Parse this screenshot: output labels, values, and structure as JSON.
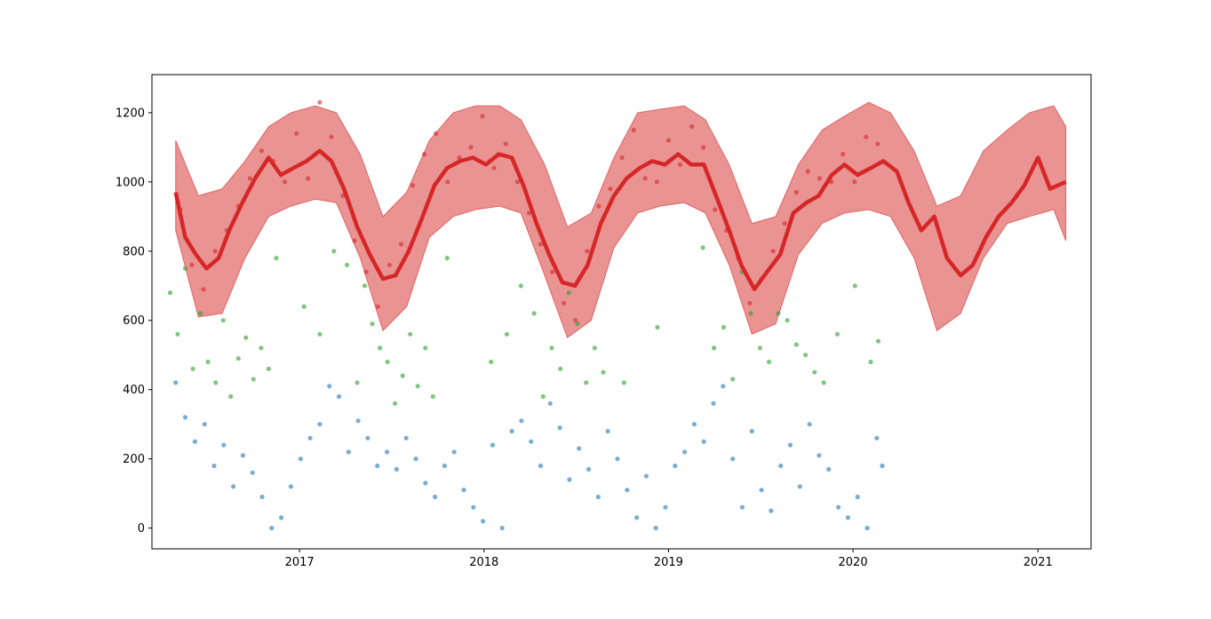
{
  "chart_data": {
    "type": "scatter",
    "x_axis": {
      "kind": "date",
      "range": [
        "2016-03-15",
        "2021-04-16"
      ],
      "ticks": [
        {
          "date": "2017-01-01",
          "label": "2017"
        },
        {
          "date": "2018-01-01",
          "label": "2018"
        },
        {
          "date": "2019-01-01",
          "label": "2019"
        },
        {
          "date": "2020-01-01",
          "label": "2020"
        },
        {
          "date": "2021-01-01",
          "label": "2021"
        }
      ]
    },
    "y_axis": {
      "range": [
        -60,
        1310
      ],
      "ticks": [
        {
          "value": 0,
          "label": "0"
        },
        {
          "value": 200,
          "label": "200"
        },
        {
          "value": 400,
          "label": "400"
        },
        {
          "value": 600,
          "label": "600"
        },
        {
          "value": 800,
          "label": "800"
        },
        {
          "value": 1000,
          "label": "1000"
        },
        {
          "value": 1200,
          "label": "1200"
        }
      ]
    },
    "grid": false,
    "legend": "none",
    "colors": {
      "series_blue": "#1f77b4",
      "series_green": "#2ca02c",
      "series_red": "#d62728",
      "band": "#d62728"
    },
    "band": {
      "x": [
        "2016-05-01",
        "2016-06-15",
        "2016-08-01",
        "2016-09-15",
        "2016-11-01",
        "2016-12-15",
        "2017-02-01",
        "2017-03-15",
        "2017-05-01",
        "2017-06-15",
        "2017-08-01",
        "2017-09-15",
        "2017-11-01",
        "2017-12-15",
        "2018-02-01",
        "2018-03-15",
        "2018-05-01",
        "2018-06-15",
        "2018-08-01",
        "2018-09-15",
        "2018-11-01",
        "2018-12-15",
        "2019-02-01",
        "2019-03-15",
        "2019-05-01",
        "2019-06-15",
        "2019-08-01",
        "2019-09-15",
        "2019-11-01",
        "2019-12-15",
        "2020-02-01",
        "2020-03-15",
        "2020-05-01",
        "2020-06-15",
        "2020-08-01",
        "2020-09-15",
        "2020-11-01",
        "2020-12-15",
        "2021-02-01",
        "2021-02-25"
      ],
      "upper": [
        1120,
        960,
        980,
        1060,
        1160,
        1200,
        1220,
        1200,
        1080,
        900,
        970,
        1120,
        1200,
        1220,
        1220,
        1180,
        1050,
        870,
        910,
        1070,
        1200,
        1210,
        1220,
        1180,
        1050,
        880,
        900,
        1050,
        1150,
        1190,
        1230,
        1200,
        1090,
        930,
        960,
        1090,
        1150,
        1200,
        1220,
        1160
      ],
      "lower": [
        860,
        610,
        620,
        780,
        900,
        930,
        950,
        940,
        780,
        570,
        640,
        840,
        900,
        920,
        930,
        910,
        730,
        550,
        600,
        810,
        910,
        930,
        940,
        910,
        760,
        560,
        590,
        790,
        880,
        910,
        920,
        900,
        780,
        570,
        620,
        780,
        880,
        900,
        920,
        830
      ]
    },
    "trend": {
      "x": [
        "2016-05-01",
        "2016-05-20",
        "2016-06-10",
        "2016-07-01",
        "2016-07-25",
        "2016-08-15",
        "2016-09-10",
        "2016-10-05",
        "2016-11-01",
        "2016-11-25",
        "2016-12-20",
        "2017-01-15",
        "2017-02-10",
        "2017-03-05",
        "2017-03-30",
        "2017-04-25",
        "2017-05-20",
        "2017-06-15",
        "2017-07-10",
        "2017-08-05",
        "2017-08-30",
        "2017-09-25",
        "2017-10-20",
        "2017-11-15",
        "2017-12-10",
        "2018-01-05",
        "2018-01-30",
        "2018-02-25",
        "2018-03-20",
        "2018-04-15",
        "2018-05-10",
        "2018-06-05",
        "2018-06-30",
        "2018-07-25",
        "2018-08-20",
        "2018-09-15",
        "2018-10-10",
        "2018-11-05",
        "2018-11-30",
        "2018-12-25",
        "2019-01-20",
        "2019-02-15",
        "2019-03-12",
        "2019-04-05",
        "2019-05-01",
        "2019-05-25",
        "2019-06-20",
        "2019-07-15",
        "2019-08-10",
        "2019-09-05",
        "2019-10-01",
        "2019-10-25",
        "2019-11-20",
        "2019-12-15",
        "2020-01-10",
        "2020-02-05",
        "2020-03-01",
        "2020-03-28",
        "2020-04-20",
        "2020-05-15",
        "2020-06-10",
        "2020-07-05",
        "2020-08-01",
        "2020-08-25",
        "2020-09-20",
        "2020-10-15",
        "2020-11-10",
        "2020-12-05",
        "2021-01-01",
        "2021-01-25",
        "2021-02-25"
      ],
      "y": [
        970,
        840,
        790,
        750,
        780,
        860,
        940,
        1010,
        1070,
        1020,
        1040,
        1060,
        1090,
        1060,
        980,
        870,
        790,
        720,
        730,
        800,
        890,
        990,
        1040,
        1060,
        1070,
        1050,
        1080,
        1070,
        990,
        880,
        790,
        710,
        700,
        760,
        880,
        960,
        1010,
        1040,
        1060,
        1050,
        1080,
        1050,
        1050,
        960,
        860,
        760,
        690,
        740,
        790,
        910,
        940,
        960,
        1020,
        1050,
        1020,
        1040,
        1060,
        1030,
        940,
        860,
        900,
        780,
        730,
        760,
        840,
        900,
        940,
        990,
        1070,
        980,
        1000
      ]
    },
    "series": [
      {
        "color": "#d62728",
        "x": [
          "2016-05-10",
          "2016-06-02",
          "2016-06-25",
          "2016-07-18",
          "2016-08-10",
          "2016-09-02",
          "2016-09-25",
          "2016-10-18",
          "2016-11-10",
          "2016-12-03",
          "2016-12-26",
          "2017-01-18",
          "2017-02-10",
          "2017-03-05",
          "2017-03-28",
          "2017-04-20",
          "2017-05-13",
          "2017-06-05",
          "2017-06-28",
          "2017-07-21",
          "2017-08-13",
          "2017-09-05",
          "2017-09-28",
          "2017-10-21",
          "2017-11-13",
          "2017-12-06",
          "2017-12-29",
          "2018-01-21",
          "2018-02-13",
          "2018-03-08",
          "2018-03-31",
          "2018-04-23",
          "2018-05-16",
          "2018-06-08",
          "2018-07-01",
          "2018-07-24",
          "2018-08-16",
          "2018-09-08",
          "2018-10-01",
          "2018-10-24",
          "2018-11-16",
          "2018-12-09",
          "2019-01-01",
          "2019-01-24",
          "2019-02-16",
          "2019-03-11",
          "2019-04-03",
          "2019-04-26",
          "2019-05-19",
          "2019-06-11",
          "2019-07-04",
          "2019-07-27",
          "2019-08-19",
          "2019-09-11",
          "2019-10-04",
          "2019-10-27",
          "2019-11-19",
          "2019-12-12",
          "2020-01-04",
          "2020-01-27",
          "2020-02-19"
        ],
        "y": [
          920,
          760,
          690,
          800,
          860,
          930,
          1010,
          1090,
          1060,
          1000,
          1140,
          1010,
          1230,
          1130,
          960,
          830,
          740,
          640,
          760,
          820,
          990,
          1080,
          1140,
          1000,
          1070,
          1100,
          1190,
          1040,
          1110,
          1000,
          910,
          820,
          740,
          650,
          600,
          800,
          930,
          980,
          1070,
          1150,
          1010,
          1000,
          1120,
          1050,
          1160,
          1100,
          920,
          860,
          780,
          650,
          720,
          800,
          880,
          970,
          1030,
          1010,
          1000,
          1080,
          1000,
          1130,
          1110
        ]
      },
      {
        "color": "#2ca02c",
        "x": [
          "2016-04-20",
          "2016-05-05",
          "2016-05-20",
          "2016-06-04",
          "2016-06-19",
          "2016-07-04",
          "2016-07-19",
          "2016-08-03",
          "2016-08-18",
          "2016-09-02",
          "2016-09-17",
          "2016-10-02",
          "2016-10-17",
          "2016-11-01",
          "2016-11-16",
          "2017-01-10",
          "2017-02-10",
          "2017-03-10",
          "2017-04-05",
          "2017-04-25",
          "2017-05-10",
          "2017-05-25",
          "2017-06-09",
          "2017-06-24",
          "2017-07-09",
          "2017-07-24",
          "2017-08-08",
          "2017-08-23",
          "2017-09-07",
          "2017-09-22",
          "2017-10-20",
          "2018-01-15",
          "2018-02-15",
          "2018-03-15",
          "2018-04-10",
          "2018-04-28",
          "2018-05-15",
          "2018-06-01",
          "2018-06-18",
          "2018-07-05",
          "2018-07-22",
          "2018-08-08",
          "2018-08-25",
          "2018-10-05",
          "2018-12-10",
          "2019-03-10",
          "2019-04-01",
          "2019-04-20",
          "2019-05-08",
          "2019-05-26",
          "2019-06-13",
          "2019-07-01",
          "2019-07-19",
          "2019-08-06",
          "2019-08-24",
          "2019-09-11",
          "2019-09-29",
          "2019-10-17",
          "2019-11-04",
          "2019-12-01",
          "2020-01-05",
          "2020-02-05",
          "2020-02-20"
        ],
        "y": [
          680,
          560,
          750,
          460,
          620,
          480,
          420,
          600,
          380,
          490,
          550,
          430,
          520,
          460,
          780,
          640,
          560,
          800,
          760,
          420,
          700,
          590,
          520,
          480,
          360,
          440,
          560,
          410,
          520,
          380,
          780,
          480,
          560,
          700,
          620,
          380,
          520,
          460,
          680,
          590,
          420,
          520,
          450,
          420,
          580,
          810,
          520,
          580,
          430,
          740,
          620,
          520,
          480,
          620,
          600,
          530,
          500,
          450,
          420,
          560,
          700,
          480,
          540
        ]
      },
      {
        "color": "#1f77b4",
        "x": [
          "2016-05-01",
          "2016-05-20",
          "2016-06-08",
          "2016-06-27",
          "2016-07-16",
          "2016-08-04",
          "2016-08-23",
          "2016-09-11",
          "2016-09-30",
          "2016-10-19",
          "2016-11-07",
          "2016-11-26",
          "2016-12-15",
          "2017-01-03",
          "2017-01-22",
          "2017-02-10",
          "2017-03-01",
          "2017-03-20",
          "2017-04-08",
          "2017-04-27",
          "2017-05-16",
          "2017-06-04",
          "2017-06-23",
          "2017-07-12",
          "2017-07-31",
          "2017-08-19",
          "2017-09-07",
          "2017-09-26",
          "2017-10-15",
          "2017-11-03",
          "2017-11-22",
          "2017-12-11",
          "2017-12-30",
          "2018-01-18",
          "2018-02-06",
          "2018-02-25",
          "2018-03-16",
          "2018-04-04",
          "2018-04-23",
          "2018-05-12",
          "2018-05-31",
          "2018-06-19",
          "2018-07-08",
          "2018-07-27",
          "2018-08-15",
          "2018-09-03",
          "2018-09-22",
          "2018-10-11",
          "2018-10-30",
          "2018-11-18",
          "2018-12-07",
          "2018-12-26",
          "2019-01-14",
          "2019-02-02",
          "2019-02-21",
          "2019-03-12",
          "2019-03-31",
          "2019-04-19",
          "2019-05-08",
          "2019-05-27",
          "2019-06-15",
          "2019-07-04",
          "2019-07-23",
          "2019-08-11",
          "2019-08-30",
          "2019-09-18",
          "2019-10-07",
          "2019-10-26",
          "2019-11-14",
          "2019-12-03",
          "2019-12-22",
          "2020-01-10",
          "2020-01-29",
          "2020-02-17",
          "2020-02-28"
        ],
        "y": [
          420,
          320,
          250,
          300,
          180,
          240,
          120,
          210,
          160,
          90,
          0,
          30,
          120,
          200,
          260,
          300,
          410,
          380,
          220,
          310,
          260,
          180,
          220,
          170,
          260,
          200,
          130,
          90,
          180,
          220,
          110,
          60,
          20,
          240,
          0,
          280,
          310,
          250,
          180,
          360,
          290,
          140,
          230,
          170,
          90,
          280,
          200,
          110,
          30,
          150,
          0,
          60,
          180,
          220,
          300,
          250,
          360,
          410,
          200,
          60,
          280,
          110,
          50,
          180,
          240,
          120,
          300,
          210,
          170,
          60,
          30,
          90,
          0,
          260,
          180
        ]
      }
    ],
    "title": "",
    "xlabel": "",
    "ylabel": ""
  }
}
